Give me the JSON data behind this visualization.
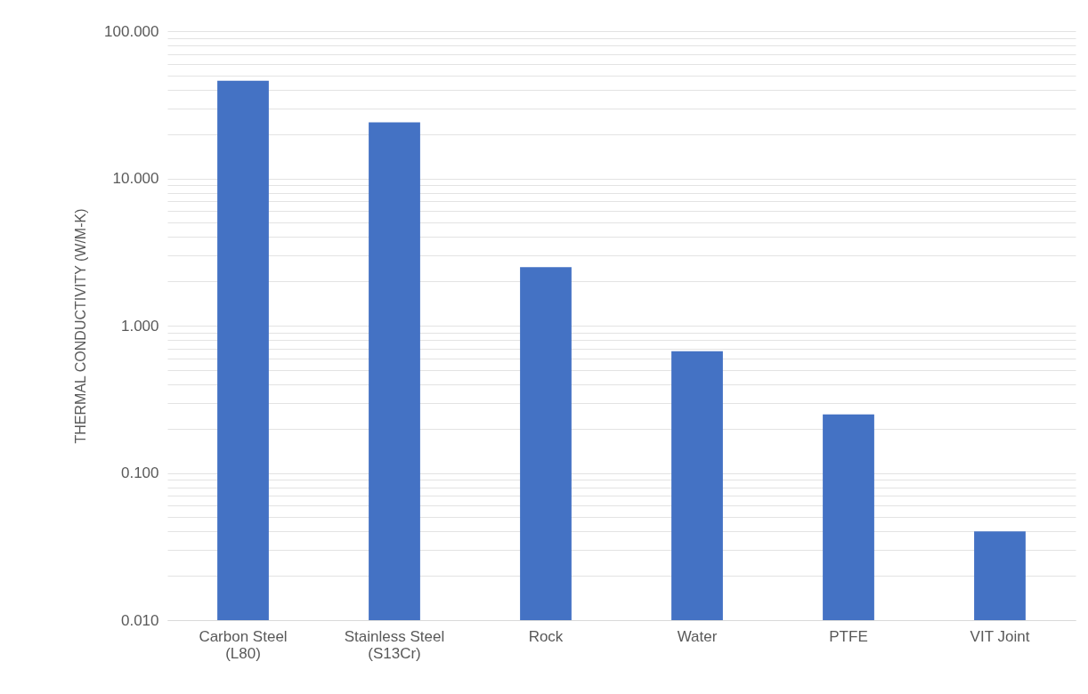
{
  "chart_data": {
    "type": "bar",
    "ylabel": "THERMAL CONDUCTIVITY (W/M-K)",
    "categories": [
      "Carbon Steel\n(L80)",
      "Stainless Steel\n(S13Cr)",
      "Rock",
      "Water",
      "PTFE",
      "VIT Joint"
    ],
    "values": [
      46,
      24,
      2.5,
      0.67,
      0.25,
      0.04
    ],
    "color": "#4472c4",
    "log": true,
    "grid": true,
    "ylim": [
      0.01,
      100
    ],
    "yticks": [
      {
        "value": 0.01,
        "label": "0.010"
      },
      {
        "value": 0.02,
        "label": null
      },
      {
        "value": 0.03,
        "label": null
      },
      {
        "value": 0.04,
        "label": null
      },
      {
        "value": 0.05,
        "label": null
      },
      {
        "value": 0.06,
        "label": null
      },
      {
        "value": 0.07,
        "label": null
      },
      {
        "value": 0.08,
        "label": null
      },
      {
        "value": 0.09,
        "label": null
      },
      {
        "value": 0.1,
        "label": "0.100"
      },
      {
        "value": 0.2,
        "label": null
      },
      {
        "value": 0.3,
        "label": null
      },
      {
        "value": 0.4,
        "label": null
      },
      {
        "value": 0.5,
        "label": null
      },
      {
        "value": 0.6,
        "label": null
      },
      {
        "value": 0.7,
        "label": null
      },
      {
        "value": 0.8,
        "label": null
      },
      {
        "value": 0.9,
        "label": null
      },
      {
        "value": 1,
        "label": "1.000"
      },
      {
        "value": 2,
        "label": null
      },
      {
        "value": 3,
        "label": null
      },
      {
        "value": 4,
        "label": null
      },
      {
        "value": 5,
        "label": null
      },
      {
        "value": 6,
        "label": null
      },
      {
        "value": 7,
        "label": null
      },
      {
        "value": 8,
        "label": null
      },
      {
        "value": 9,
        "label": null
      },
      {
        "value": 10,
        "label": "10.000"
      },
      {
        "value": 20,
        "label": null
      },
      {
        "value": 30,
        "label": null
      },
      {
        "value": 40,
        "label": null
      },
      {
        "value": 50,
        "label": null
      },
      {
        "value": 60,
        "label": null
      },
      {
        "value": 70,
        "label": null
      },
      {
        "value": 80,
        "label": null
      },
      {
        "value": 90,
        "label": null
      },
      {
        "value": 100,
        "label": "100.000"
      }
    ]
  }
}
